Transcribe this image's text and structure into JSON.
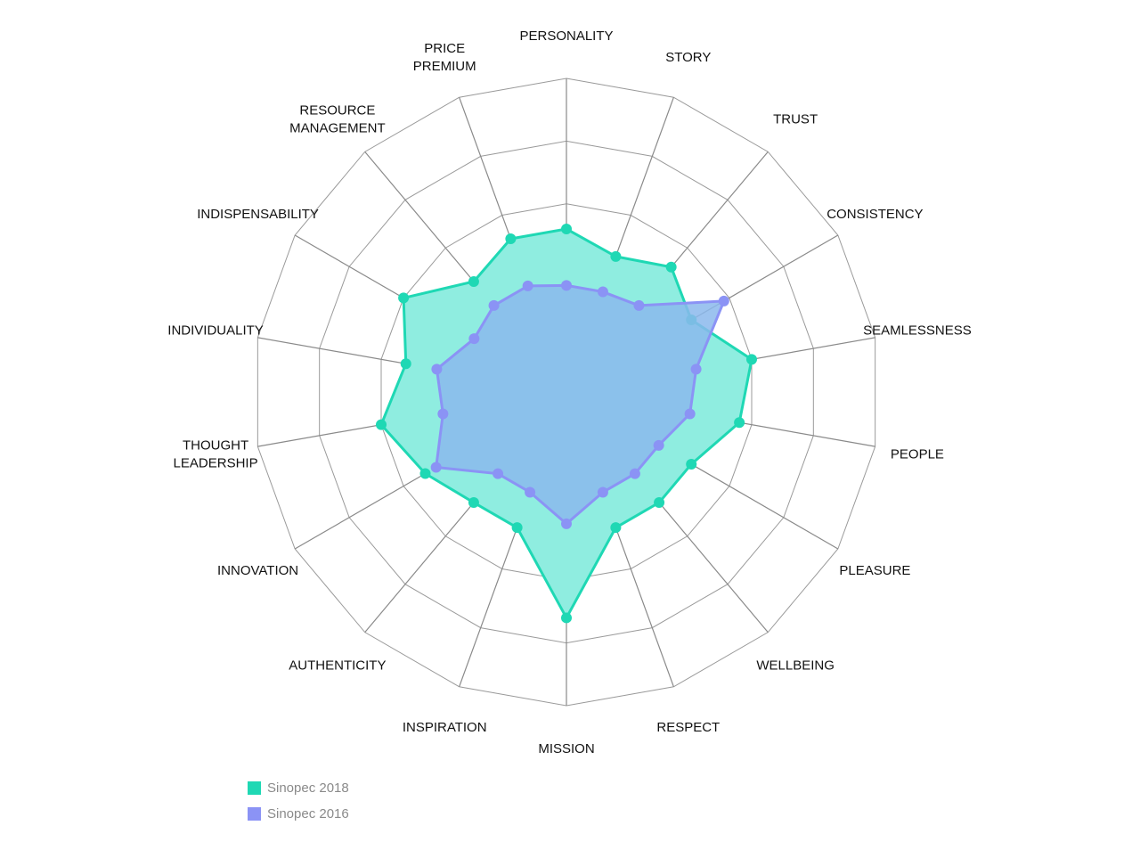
{
  "chart_data": {
    "type": "radar",
    "title": "",
    "axes": [
      "PERSONALITY",
      "STORY",
      "TRUST",
      "CONSISTENCY",
      "SEAMLESSNESS",
      "PEOPLE",
      "PLEASURE",
      "WELLBEING",
      "RESPECT",
      "MISSION",
      "INSPIRATION",
      "AUTHENTICITY",
      "INNOVATION",
      "THOUGHT LEADERSHIP",
      "INDIVIDUALITY",
      "INDISPENSABILITY",
      "RESOURCE MANAGEMENT",
      "PRICE PREMIUM"
    ],
    "rlim": [
      0,
      5
    ],
    "grid_rings": 5,
    "grid": true,
    "legend_position": "bottom-left",
    "series": [
      {
        "name": "Sinopec 2018",
        "color": "#1fd8b4",
        "fill": "#8fede0",
        "values": [
          2.6,
          2.3,
          2.6,
          2.3,
          3.0,
          2.8,
          2.3,
          2.3,
          2.3,
          3.6,
          2.3,
          2.3,
          2.6,
          3.0,
          2.6,
          3.0,
          2.3,
          2.6
        ]
      },
      {
        "name": "Sinopec 2016",
        "color": "#8b93f5",
        "fill": "#8bb8ec",
        "values": [
          1.7,
          1.7,
          1.8,
          2.9,
          2.1,
          2.0,
          1.7,
          1.7,
          1.7,
          2.1,
          1.7,
          1.7,
          2.4,
          2.0,
          2.1,
          1.7,
          1.8,
          1.8
        ]
      }
    ]
  }
}
